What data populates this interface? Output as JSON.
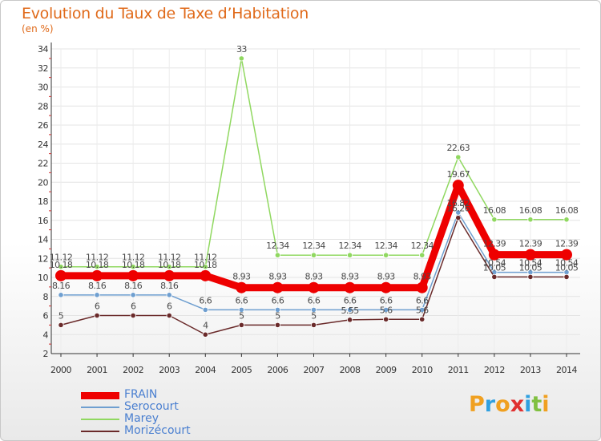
{
  "page": {
    "title": "Evolution du Taux de Taxe d’Habitation",
    "unit_label": "(en %)"
  },
  "logo": {
    "letters": [
      "P",
      "r",
      "o",
      "x",
      "i",
      "t",
      "i"
    ],
    "colors": [
      "#f0a020",
      "#30a0e0",
      "#f0a020",
      "#e03030",
      "#30a0e0",
      "#80c040",
      "#f0a020"
    ]
  },
  "chart_data": {
    "type": "line",
    "title": "Evolution du Taux de Taxe d’Habitation",
    "ylabel": "(en %)",
    "xlabel": "",
    "x": [
      "2000",
      "2001",
      "2002",
      "2003",
      "2004",
      "2005",
      "2006",
      "2007",
      "2008",
      "2009",
      "2010",
      "2011",
      "2012",
      "2013",
      "2014"
    ],
    "ylim": [
      2,
      34
    ],
    "yticks": [
      "2",
      "4",
      "6",
      "8",
      "10",
      "12",
      "14",
      "16",
      "18",
      "20",
      "22",
      "24",
      "26",
      "28",
      "30",
      "32",
      "34"
    ],
    "grid": true,
    "legend_position": "bottom-left",
    "series": [
      {
        "name": "FRAIN",
        "color": "#ee0000",
        "thick": true,
        "values": [
          10.18,
          10.18,
          10.18,
          10.18,
          10.18,
          8.93,
          8.93,
          8.93,
          8.93,
          8.93,
          8.93,
          19.67,
          12.39,
          12.39,
          12.39
        ],
        "labels": [
          "10.18",
          "10.18",
          "10.18",
          "10.18",
          "10.18",
          "8.93",
          "8.93",
          "8.93",
          "8.93",
          "8.93",
          "8.93",
          "19.67",
          "12.39",
          "12.39",
          "12.39"
        ]
      },
      {
        "name": "Serocourt",
        "color": "#6f9fd0",
        "thick": false,
        "values": [
          8.16,
          8.16,
          8.16,
          8.16,
          6.6,
          6.6,
          6.6,
          6.6,
          6.6,
          6.6,
          6.6,
          16.82,
          10.54,
          10.54,
          10.54
        ],
        "labels": [
          "8.16",
          "8.16",
          "8.16",
          "8.16",
          "6.6",
          "6.6",
          "6.6",
          "6.6",
          "6.6",
          "6.6",
          "6.6",
          "16.82",
          "10.54",
          "10.54",
          "10.54"
        ]
      },
      {
        "name": "Marey",
        "color": "#90d860",
        "thick": false,
        "values": [
          11.12,
          11.12,
          11.12,
          11.12,
          11.12,
          33,
          12.34,
          12.34,
          12.34,
          12.34,
          12.34,
          22.63,
          16.08,
          16.08,
          16.08
        ],
        "labels": [
          "11.12",
          "11.12",
          "11.12",
          "11.12",
          "11.12",
          "33",
          "12.34",
          "12.34",
          "12.34",
          "12.34",
          "12.34",
          "22.63",
          "16.08",
          "16.08",
          "16.08"
        ]
      },
      {
        "name": "Morizécourt",
        "color": "#6a2a2a",
        "thick": false,
        "values": [
          5,
          6,
          6,
          6,
          4,
          5,
          5,
          5,
          5.55,
          5.6,
          5.6,
          16.26,
          10.05,
          10.05,
          10.05
        ],
        "labels": [
          "5",
          "6",
          "6",
          "6",
          "4",
          "5",
          "5",
          "5",
          "5.55",
          "5.6",
          "5.6",
          "16.26",
          "10.05",
          "10.05",
          "10.05"
        ]
      }
    ]
  }
}
